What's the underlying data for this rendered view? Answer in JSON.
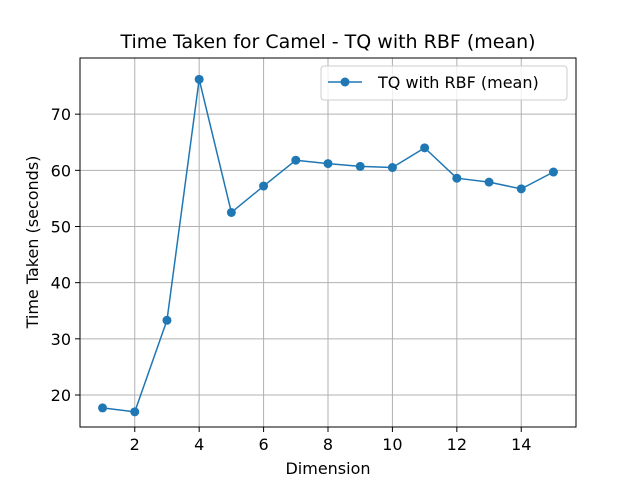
{
  "chart_data": {
    "type": "line",
    "title": "Time Taken for Camel - TQ with RBF (mean)",
    "xlabel": "Dimension",
    "ylabel": "Time Taken (seconds)",
    "x": [
      1,
      2,
      3,
      4,
      5,
      6,
      7,
      8,
      9,
      10,
      11,
      12,
      13,
      14,
      15
    ],
    "series": [
      {
        "name": "TQ with RBF (mean)",
        "color": "#1f77b4",
        "values": [
          17.7,
          17.0,
          33.3,
          76.2,
          52.5,
          57.2,
          61.8,
          61.2,
          60.7,
          60.5,
          64.0,
          58.6,
          57.9,
          56.7,
          59.7
        ]
      }
    ],
    "xlim": [
      0.3,
      15.7
    ],
    "ylim": [
      14.3,
      80.0
    ],
    "xticks": [
      "2",
      "4",
      "6",
      "8",
      "10",
      "12",
      "14"
    ],
    "yticks": [
      "20",
      "30",
      "40",
      "50",
      "60",
      "70"
    ],
    "grid": true,
    "legend_position": "top-right"
  }
}
